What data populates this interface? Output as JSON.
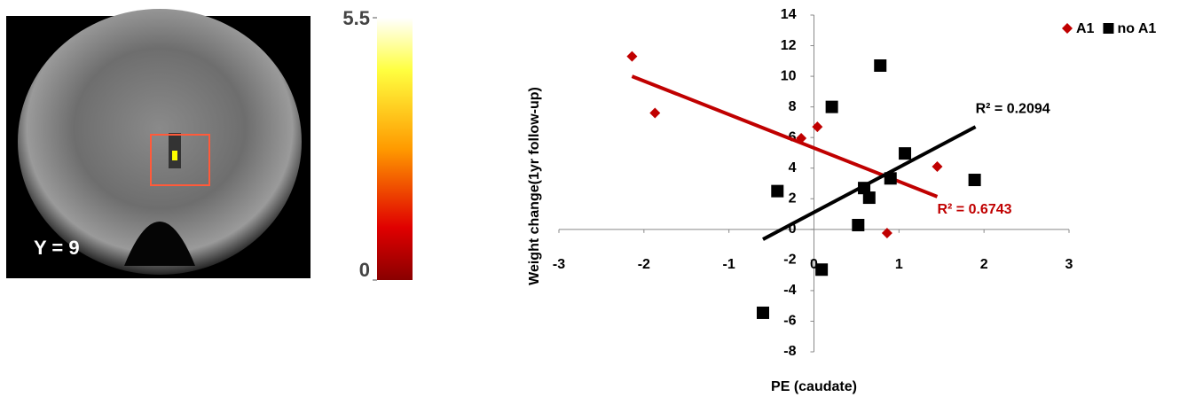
{
  "brain_panel": {
    "slice_label": "Y = 9",
    "colorbar_lim": [
      0,
      5.5
    ],
    "colorbar_ticks": [
      0,
      5.5
    ]
  },
  "chart_data": {
    "type": "scatter",
    "x_label": "PE (caudate)",
    "y_label": "Weight change(1yr  follow-up)",
    "xlim": [
      -3,
      3
    ],
    "xticks": [
      -3,
      -2,
      -1,
      0,
      1,
      2,
      3
    ],
    "ylim": [
      -8,
      14
    ],
    "yticks": [
      -8,
      -6,
      -4,
      -2,
      0,
      2,
      4,
      6,
      8,
      10,
      12,
      14
    ],
    "legend": "top-right",
    "series": [
      {
        "name": "A1",
        "color": "#c00000",
        "marker": "diamond",
        "x": [
          -2.14,
          -1.87,
          -0.15,
          0.04,
          1.45,
          0.86
        ],
        "values": [
          11.3,
          7.6,
          5.95,
          6.7,
          4.1,
          -0.24
        ],
        "trendline": {
          "x": [
            -2.14,
            1.45
          ],
          "y": [
            10.0,
            2.14
          ],
          "label": "R² = 0.6743"
        }
      },
      {
        "name": "no A1",
        "color": "#000000",
        "marker": "square",
        "x": [
          0.78,
          0.21,
          1.07,
          0.9,
          0.59,
          0.65,
          -0.43,
          0.52,
          1.89,
          0.09,
          -0.6
        ],
        "values": [
          10.7,
          8.0,
          4.96,
          3.33,
          2.7,
          2.07,
          2.5,
          0.28,
          3.23,
          -2.63,
          -5.45
        ],
        "trendline": {
          "x": [
            -0.6,
            1.9
          ],
          "y": [
            -0.65,
            6.7
          ],
          "label": "R² = 0.2094"
        }
      }
    ]
  }
}
